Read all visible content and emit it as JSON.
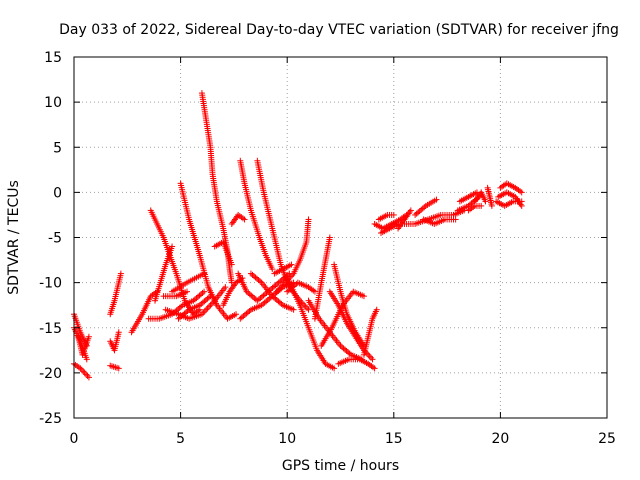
{
  "chart_data": {
    "type": "scatter",
    "title": "Day 033 of 2022, Sidereal Day-to-day VTEC variation (SDTVAR) for receiver jfng",
    "xlabel": "GPS time / hours",
    "ylabel": "SDTVAR / TECUs",
    "xlim": [
      0,
      25
    ],
    "ylim": [
      -25,
      15
    ],
    "x_ticks": [
      0,
      5,
      10,
      15,
      20,
      25
    ],
    "y_ticks": [
      -25,
      -20,
      -15,
      -10,
      -5,
      0,
      5,
      10,
      15
    ],
    "grid": true,
    "marker": "plus",
    "color": "#ff0000",
    "series": [
      {
        "tracks": [
          [
            [
              0.0,
              -13.5
            ],
            [
              0.3,
              -15.5
            ],
            [
              0.6,
              -17.0
            ]
          ],
          [
            [
              0.0,
              -15.0
            ],
            [
              0.3,
              -16.5
            ],
            [
              0.6,
              -18.5
            ]
          ],
          [
            [
              0.0,
              -19.0
            ],
            [
              0.3,
              -19.5
            ],
            [
              0.7,
              -20.5
            ]
          ],
          [
            [
              0.2,
              -16.0
            ],
            [
              0.4,
              -18.0
            ],
            [
              0.7,
              -16.0
            ]
          ],
          [
            [
              1.7,
              -16.5
            ],
            [
              1.9,
              -17.5
            ],
            [
              2.1,
              -15.5
            ]
          ],
          [
            [
              1.7,
              -19.2
            ],
            [
              2.1,
              -19.5
            ]
          ],
          [
            [
              1.7,
              -13.5
            ],
            [
              1.9,
              -12.0
            ],
            [
              2.2,
              -9.0
            ]
          ],
          [
            [
              2.7,
              -15.5
            ],
            [
              3.2,
              -13.5
            ],
            [
              3.6,
              -11.5
            ],
            [
              3.9,
              -11.0
            ]
          ],
          [
            [
              3.6,
              -2.0
            ],
            [
              4.2,
              -5.0
            ],
            [
              4.8,
              -9.0
            ],
            [
              5.2,
              -12.0
            ],
            [
              5.6,
              -13.5
            ],
            [
              5.9,
              -13.0
            ]
          ],
          [
            [
              3.5,
              -14.0
            ],
            [
              4.0,
              -14.0
            ],
            [
              4.6,
              -13.5
            ],
            [
              5.1,
              -12.5
            ],
            [
              5.6,
              -12.0
            ],
            [
              6.1,
              -11.0
            ]
          ],
          [
            [
              3.8,
              -12.0
            ],
            [
              4.3,
              -8.0
            ],
            [
              4.6,
              -6.0
            ]
          ],
          [
            [
              4.2,
              -11.5
            ],
            [
              4.8,
              -11.5
            ],
            [
              5.3,
              -11.0
            ]
          ],
          [
            [
              4.3,
              -13.0
            ],
            [
              4.9,
              -13.5
            ],
            [
              5.4,
              -14.0
            ],
            [
              6.0,
              -13.5
            ],
            [
              6.6,
              -12.0
            ],
            [
              7.1,
              -10.5
            ]
          ],
          [
            [
              4.6,
              -11.0
            ],
            [
              5.3,
              -10.0
            ],
            [
              6.1,
              -9.0
            ]
          ],
          [
            [
              5.0,
              1.0
            ],
            [
              5.4,
              -3.0
            ],
            [
              5.9,
              -7.0
            ],
            [
              6.3,
              -10.5
            ],
            [
              6.7,
              -12.5
            ],
            [
              7.2,
              -14.0
            ],
            [
              7.6,
              -13.5
            ]
          ],
          [
            [
              4.9,
              -14.0
            ],
            [
              5.4,
              -13.0
            ],
            [
              5.9,
              -12.5
            ],
            [
              6.4,
              -11.5
            ]
          ],
          [
            [
              6.0,
              11.0
            ],
            [
              6.2,
              8.0
            ],
            [
              6.4,
              5.0
            ],
            [
              6.5,
              2.0
            ],
            [
              6.7,
              -1.0
            ],
            [
              7.0,
              -4.0
            ],
            [
              7.2,
              -6.5
            ],
            [
              7.3,
              -8.5
            ],
            [
              7.4,
              -10.0
            ]
          ],
          [
            [
              6.6,
              -6.0
            ],
            [
              7.0,
              -5.5
            ],
            [
              7.4,
              -8.0
            ]
          ],
          [
            [
              7.0,
              -12.5
            ],
            [
              7.3,
              -11.0
            ],
            [
              7.6,
              -10.0
            ],
            [
              7.9,
              -9.5
            ]
          ],
          [
            [
              7.4,
              -3.5
            ],
            [
              7.7,
              -2.5
            ],
            [
              8.0,
              -3.0
            ]
          ],
          [
            [
              7.8,
              3.5
            ],
            [
              8.0,
              1.0
            ],
            [
              8.3,
              -2.0
            ],
            [
              8.7,
              -5.0
            ],
            [
              9.0,
              -7.0
            ],
            [
              9.3,
              -8.5
            ]
          ],
          [
            [
              7.7,
              -9.0
            ],
            [
              8.1,
              -11.0
            ],
            [
              8.6,
              -12.0
            ],
            [
              9.1,
              -11.0
            ],
            [
              9.6,
              -10.0
            ],
            [
              10.1,
              -9.0
            ]
          ],
          [
            [
              7.8,
              -14.0
            ],
            [
              8.3,
              -13.0
            ],
            [
              8.8,
              -12.5
            ],
            [
              9.3,
              -11.5
            ],
            [
              9.8,
              -10.5
            ],
            [
              10.3,
              -10.0
            ]
          ],
          [
            [
              8.6,
              3.5
            ],
            [
              8.9,
              0.0
            ],
            [
              9.3,
              -4.0
            ],
            [
              9.7,
              -8.0
            ],
            [
              10.1,
              -10.5
            ],
            [
              10.6,
              -12.0
            ],
            [
              11.0,
              -13.0
            ]
          ],
          [
            [
              8.3,
              -9.0
            ],
            [
              8.8,
              -10.0
            ],
            [
              9.3,
              -11.5
            ],
            [
              9.8,
              -12.5
            ],
            [
              10.3,
              -13.0
            ]
          ],
          [
            [
              9.5,
              -11.0
            ],
            [
              9.9,
              -10.0
            ],
            [
              10.3,
              -9.0
            ],
            [
              10.6,
              -7.5
            ],
            [
              10.9,
              -5.5
            ],
            [
              11.0,
              -3.0
            ]
          ],
          [
            [
              9.4,
              -9.0
            ],
            [
              9.8,
              -8.5
            ],
            [
              10.2,
              -8.0
            ]
          ],
          [
            [
              10.0,
              -11.0
            ],
            [
              10.5,
              -10.0
            ],
            [
              11.0,
              -10.5
            ],
            [
              11.3,
              -11.0
            ]
          ],
          [
            [
              10.0,
              -9.5
            ],
            [
              10.6,
              -12.5
            ],
            [
              11.0,
              -15.0
            ],
            [
              11.4,
              -17.5
            ],
            [
              11.8,
              -19.0
            ],
            [
              12.2,
              -19.5
            ]
          ],
          [
            [
              11.0,
              -12.0
            ],
            [
              11.5,
              -14.0
            ],
            [
              12.0,
              -15.5
            ],
            [
              12.5,
              -17.0
            ],
            [
              13.0,
              -18.0
            ],
            [
              13.5,
              -18.5
            ]
          ],
          [
            [
              11.3,
              -14.0
            ],
            [
              11.6,
              -10.0
            ],
            [
              11.8,
              -7.5
            ],
            [
              12.0,
              -5.0
            ]
          ],
          [
            [
              11.6,
              -17.0
            ],
            [
              12.1,
              -15.0
            ],
            [
              12.6,
              -12.5
            ],
            [
              13.1,
              -11.0
            ],
            [
              13.6,
              -11.5
            ]
          ],
          [
            [
              12.0,
              -11.0
            ],
            [
              12.4,
              -12.5
            ],
            [
              12.8,
              -14.5
            ],
            [
              13.2,
              -16.0
            ],
            [
              13.6,
              -17.5
            ],
            [
              14.0,
              -18.5
            ]
          ],
          [
            [
              12.2,
              -8.0
            ],
            [
              12.5,
              -11.0
            ],
            [
              12.8,
              -13.5
            ],
            [
              13.2,
              -15.5
            ],
            [
              13.6,
              -17.0
            ]
          ],
          [
            [
              12.4,
              -19.0
            ],
            [
              12.9,
              -18.5
            ],
            [
              13.4,
              -18.5
            ],
            [
              13.8,
              -19.0
            ],
            [
              14.1,
              -19.5
            ]
          ],
          [
            [
              13.6,
              -18.0
            ],
            [
              13.8,
              -16.0
            ],
            [
              14.0,
              -14.0
            ],
            [
              14.2,
              -13.0
            ]
          ],
          [
            [
              14.1,
              -3.5
            ],
            [
              14.5,
              -4.0
            ],
            [
              14.9,
              -3.5
            ],
            [
              15.3,
              -3.0
            ],
            [
              15.6,
              -2.5
            ]
          ],
          [
            [
              14.4,
              -4.5
            ],
            [
              14.8,
              -4.0
            ],
            [
              15.2,
              -3.5
            ],
            [
              15.6,
              -3.5
            ],
            [
              15.9,
              -3.5
            ]
          ],
          [
            [
              14.3,
              -3.0
            ],
            [
              14.7,
              -2.5
            ],
            [
              15.0,
              -2.5
            ]
          ],
          [
            [
              15.2,
              -4.0
            ],
            [
              15.5,
              -3.0
            ],
            [
              15.8,
              -2.0
            ]
          ],
          [
            [
              16.0,
              -2.5
            ],
            [
              16.5,
              -1.5
            ],
            [
              17.0,
              -0.8
            ]
          ],
          [
            [
              16.0,
              -3.5
            ],
            [
              16.6,
              -3.0
            ],
            [
              17.2,
              -2.5
            ],
            [
              17.8,
              -2.5
            ],
            [
              18.3,
              -2.0
            ]
          ],
          [
            [
              16.4,
              -3.0
            ],
            [
              16.9,
              -3.5
            ],
            [
              17.4,
              -3.0
            ],
            [
              17.9,
              -3.0
            ]
          ],
          [
            [
              18.0,
              -2.0
            ],
            [
              18.5,
              -1.5
            ],
            [
              19.0,
              -0.5
            ]
          ],
          [
            [
              18.1,
              -1.0
            ],
            [
              18.5,
              -0.5
            ],
            [
              18.9,
              0.0
            ]
          ],
          [
            [
              18.5,
              -2.0
            ],
            [
              18.8,
              -1.5
            ],
            [
              19.1,
              -1.5
            ]
          ],
          [
            [
              18.8,
              -1.0
            ],
            [
              19.1,
              0.0
            ],
            [
              19.3,
              -1.0
            ]
          ],
          [
            [
              19.4,
              0.5
            ],
            [
              19.5,
              -0.5
            ],
            [
              19.6,
              -1.5
            ]
          ],
          [
            [
              19.8,
              -1.0
            ],
            [
              20.2,
              -1.5
            ],
            [
              20.6,
              -1.0
            ],
            [
              21.0,
              -1.0
            ]
          ],
          [
            [
              20.0,
              0.5
            ],
            [
              20.3,
              1.0
            ],
            [
              20.7,
              0.5
            ],
            [
              21.0,
              0.0
            ]
          ],
          [
            [
              19.9,
              -0.5
            ],
            [
              20.3,
              0.0
            ],
            [
              20.7,
              -0.5
            ],
            [
              21.0,
              -1.5
            ]
          ]
        ]
      }
    ]
  }
}
